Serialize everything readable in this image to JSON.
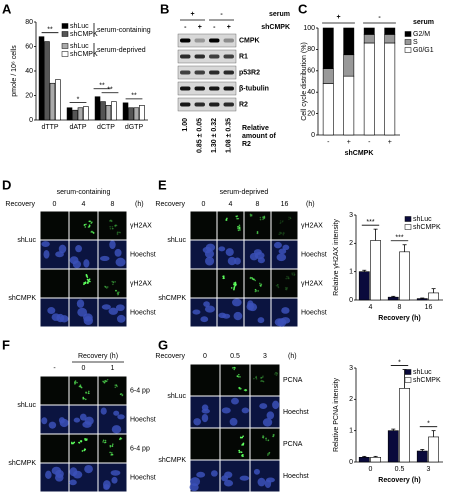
{
  "panel_labels": [
    "A",
    "B",
    "C",
    "D",
    "E",
    "F",
    "G"
  ],
  "chart_data": [
    {
      "type": "bar",
      "y_label": "pmole / 10⁶ cells",
      "categories": [
        "dTTP",
        "dATP",
        "dCTP",
        "dGTP"
      ],
      "series": [
        {
          "name": "shLuc",
          "color": "#000000",
          "values": [
            68,
            10,
            19,
            14
          ]
        },
        {
          "name": "shCMPK",
          "color": "#555555",
          "values": [
            64,
            8,
            15,
            10
          ]
        },
        {
          "name": "shLuc",
          "color": "#aaaaaa",
          "values": [
            30,
            10,
            12,
            10
          ]
        },
        {
          "name": "shCMPK",
          "color": "#ffffff",
          "values": [
            33,
            11,
            15,
            12
          ]
        }
      ],
      "legend_groups": [
        "serum-containing",
        "serum-deprived"
      ],
      "legend": "upper right",
      "ylim": [
        0,
        80
      ],
      "yticks": [
        0,
        20,
        40,
        60,
        80
      ],
      "annotations": [
        "**",
        "*",
        "**",
        "**",
        "**"
      ]
    },
    {
      "type": "bar",
      "stacked": true,
      "y_label": "Cell cycle distribution (%)",
      "x_label": "shCMPK",
      "categories": [
        "-",
        "+",
        "-",
        "+"
      ],
      "groups": [
        "+",
        "-"
      ],
      "legend_title": "serum",
      "series": [
        {
          "name": "G0/G1",
          "color": "#ffffff",
          "values": [
            48,
            55,
            86,
            86
          ]
        },
        {
          "name": "S",
          "color": "#999999",
          "values": [
            14,
            20,
            8,
            8
          ]
        },
        {
          "name": "G2/M",
          "color": "#000000",
          "values": [
            38,
            25,
            6,
            6
          ]
        }
      ],
      "legend": "right",
      "ylim": [
        0,
        100
      ],
      "yticks": [
        0,
        20,
        40,
        60,
        80,
        100
      ]
    },
    {
      "type": "bar",
      "y_label": "Relative γH2AX intensity",
      "x_label": "Recovery (h)",
      "categories": [
        "4",
        "8",
        "16"
      ],
      "series": [
        {
          "name": "shLuc",
          "color": "#0a0a3c",
          "values": [
            1.0,
            0.1,
            0.05
          ],
          "errors": [
            0.05,
            0.03,
            0.02
          ]
        },
        {
          "name": "shCMPK",
          "color": "#ffffff",
          "values": [
            2.1,
            1.7,
            0.25
          ],
          "errors": [
            0.4,
            0.25,
            0.15
          ]
        }
      ],
      "legend": "upper right",
      "ylim": [
        0,
        3
      ],
      "yticks": [
        0,
        1,
        2,
        3
      ],
      "annotations": [
        "***",
        "***"
      ]
    },
    {
      "type": "bar",
      "y_label": "Relative PCNA intensity",
      "x_label": "Recovery (h)",
      "categories": [
        "0",
        "0.5",
        "3"
      ],
      "series": [
        {
          "name": "shLuc",
          "color": "#0a0a3c",
          "values": [
            0.15,
            1.0,
            0.35
          ],
          "errors": [
            0.03,
            0.05,
            0.05
          ]
        },
        {
          "name": "shCMPK",
          "color": "#ffffff",
          "values": [
            0.15,
            2.35,
            0.8
          ],
          "errors": [
            0.03,
            0.6,
            0.2
          ]
        }
      ],
      "legend": "upper right",
      "ylim": [
        0,
        3
      ],
      "yticks": [
        0,
        1,
        2,
        3
      ],
      "annotations": [
        "*",
        "*"
      ]
    }
  ],
  "blot": {
    "header": "serum",
    "serum": [
      "+",
      "-"
    ],
    "shrna_label": "shCMPK",
    "shrna": [
      "-",
      "+",
      "-",
      "+"
    ],
    "bands": [
      "CMPK",
      "R1",
      "p53R2",
      "β-tubulin",
      "R2"
    ],
    "ratios": [
      "1.00",
      "0.85 ± 0.05",
      "1.30 ± 0.32",
      "1.08 ± 0.35"
    ],
    "ratio_label": [
      "Relative",
      "amount of",
      "R2"
    ]
  },
  "images": {
    "D": {
      "title": "serum-containing",
      "recovery": "Recovery",
      "columns": [
        "0",
        "4",
        "8"
      ],
      "unit": "(h)",
      "groups": [
        {
          "name": "shLuc",
          "rows": [
            "γH2AX",
            "Hoechst"
          ]
        },
        {
          "name": "shCMPK",
          "rows": [
            "γH2AX",
            "Hoechst"
          ]
        }
      ]
    },
    "E": {
      "title": "serum-deprived",
      "recovery": "Recovery",
      "columns": [
        "0",
        "4",
        "8",
        "16"
      ],
      "unit": "(h)",
      "groups": [
        {
          "name": "shLuc",
          "rows": [
            "γH2AX",
            "Hoechst"
          ]
        },
        {
          "name": "shCMPK",
          "rows": [
            "γH2AX",
            "Hoechst"
          ]
        }
      ]
    },
    "F": {
      "recovery": "Recovery (h)",
      "columns": [
        "-",
        "0",
        "1"
      ],
      "groups": [
        {
          "name": "shLuc",
          "rows": [
            "6-4 pp",
            "Hoechst"
          ]
        },
        {
          "name": "shCMPK",
          "rows": [
            "6-4 pp",
            "Hoechst"
          ]
        }
      ]
    },
    "G": {
      "recovery": "Recovery",
      "columns": [
        "0",
        "0.5",
        "3"
      ],
      "unit": "(h)",
      "groups": [
        {
          "name": "shLuc",
          "rows": [
            "PCNA",
            "Hoechst"
          ]
        },
        {
          "name": "shCMPK",
          "rows": [
            "PCNA",
            "Hoechst"
          ]
        }
      ]
    }
  }
}
